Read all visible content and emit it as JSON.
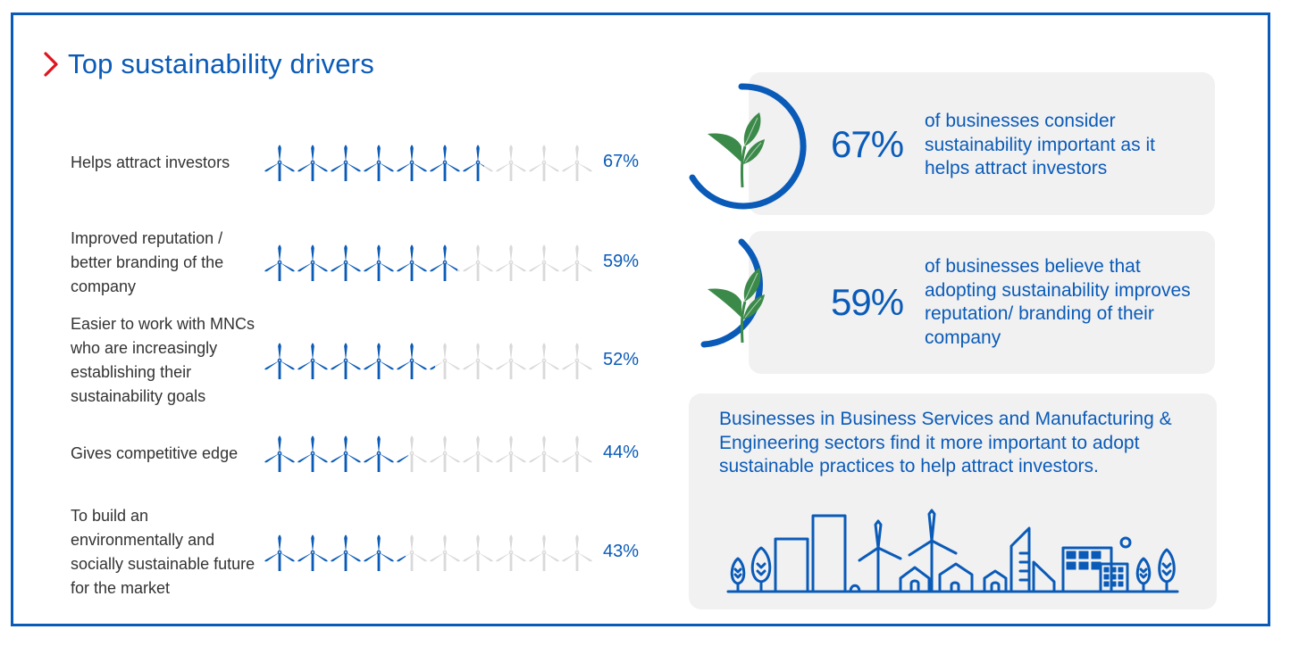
{
  "header": {
    "title": "Top sustainability drivers",
    "chevron_color": "#e1141e"
  },
  "colors": {
    "brand_blue": "#0a5bb8",
    "muted_grey": "#d9d9d9",
    "card_bg": "#f1f1f2",
    "leaf_green": "#3c8a4a",
    "label_text": "#333333"
  },
  "drivers": [
    {
      "label": "Helps attract investors",
      "pct": "67%"
    },
    {
      "label": "Improved reputation / better branding of the company",
      "pct": "59%"
    },
    {
      "label": "Easier to work with MNCs who are increasingly establishing their sustainability goals",
      "pct": "52%"
    },
    {
      "label": "Gives competitive edge",
      "pct": "44%"
    },
    {
      "label": "To build an environmentally and socially sustainable future for the market",
      "pct": "43%"
    }
  ],
  "stats": [
    {
      "value": "67%",
      "text": "of businesses consider sustainability important as it helps attract investors",
      "icon": "plant-icon"
    },
    {
      "value": "59%",
      "text": "of businesses believe that adopting sustainability improves reputation/ branding of their company",
      "icon": "plant-icon"
    }
  ],
  "note": {
    "text": "Businesses in Business Services and Manufacturing & Engineering sectors find it more important to adopt sustainable practices to help attract investors.",
    "icon": "green-city-skyline-icon"
  },
  "chart_data": {
    "type": "bar",
    "title": "Top sustainability drivers",
    "categories": [
      "Helps attract investors",
      "Improved reputation / better branding of the company",
      "Easier to work with MNCs who are increasingly establishing their sustainability goals",
      "Gives competitive edge",
      "To build an environmentally and socially sustainable future for the market"
    ],
    "values": [
      67,
      59,
      52,
      44,
      43
    ],
    "unit": "%",
    "xlabel": "",
    "ylabel": "",
    "ylim": [
      0,
      100
    ],
    "encoding": "pictograph, 10 wind turbines per row (each = 10%), filled blue proportionally",
    "grid": false,
    "legend": null
  }
}
